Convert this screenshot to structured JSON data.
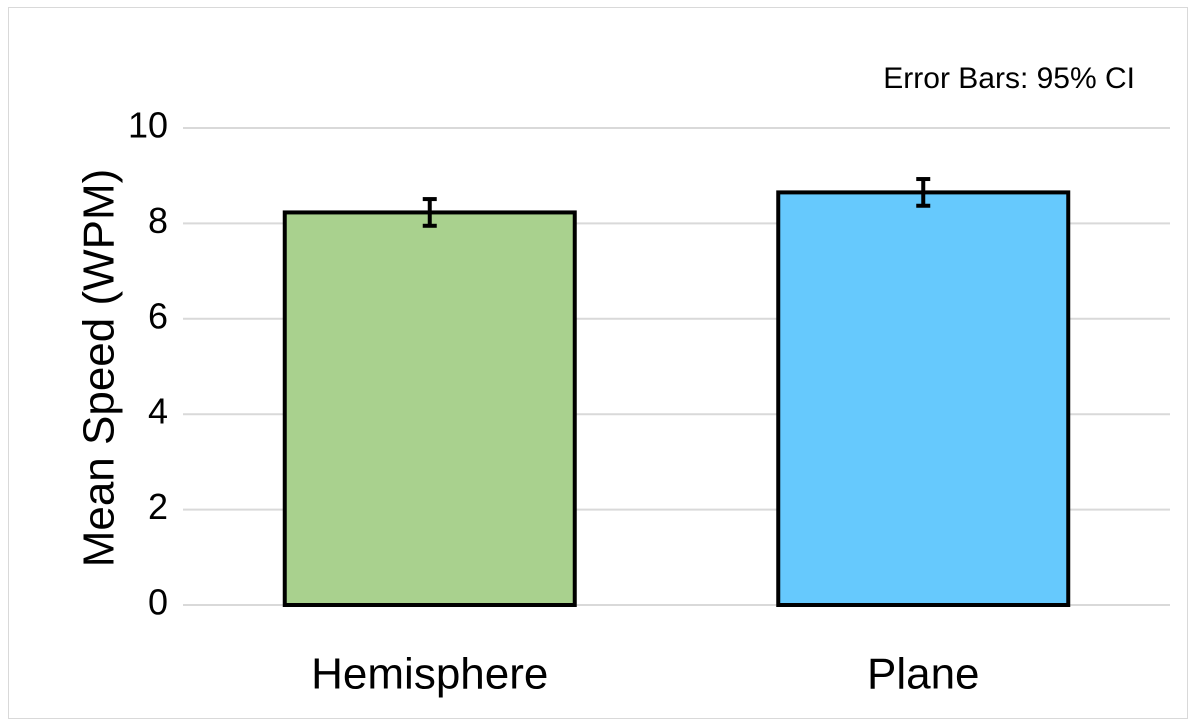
{
  "chart_data": {
    "type": "bar",
    "categories": [
      "Hemisphere",
      "Plane"
    ],
    "values": [
      8.23,
      8.65
    ],
    "error": [
      0.28,
      0.28
    ],
    "bar_colors": [
      "#a9d18e",
      "#66c9fd"
    ],
    "ylabel": "Mean Speed (WPM)",
    "xlabel": "",
    "ylim": [
      0,
      10
    ],
    "yticks": [
      0,
      2,
      4,
      6,
      8,
      10
    ],
    "grid": true,
    "annotation": "Error Bars: 95% CI"
  }
}
